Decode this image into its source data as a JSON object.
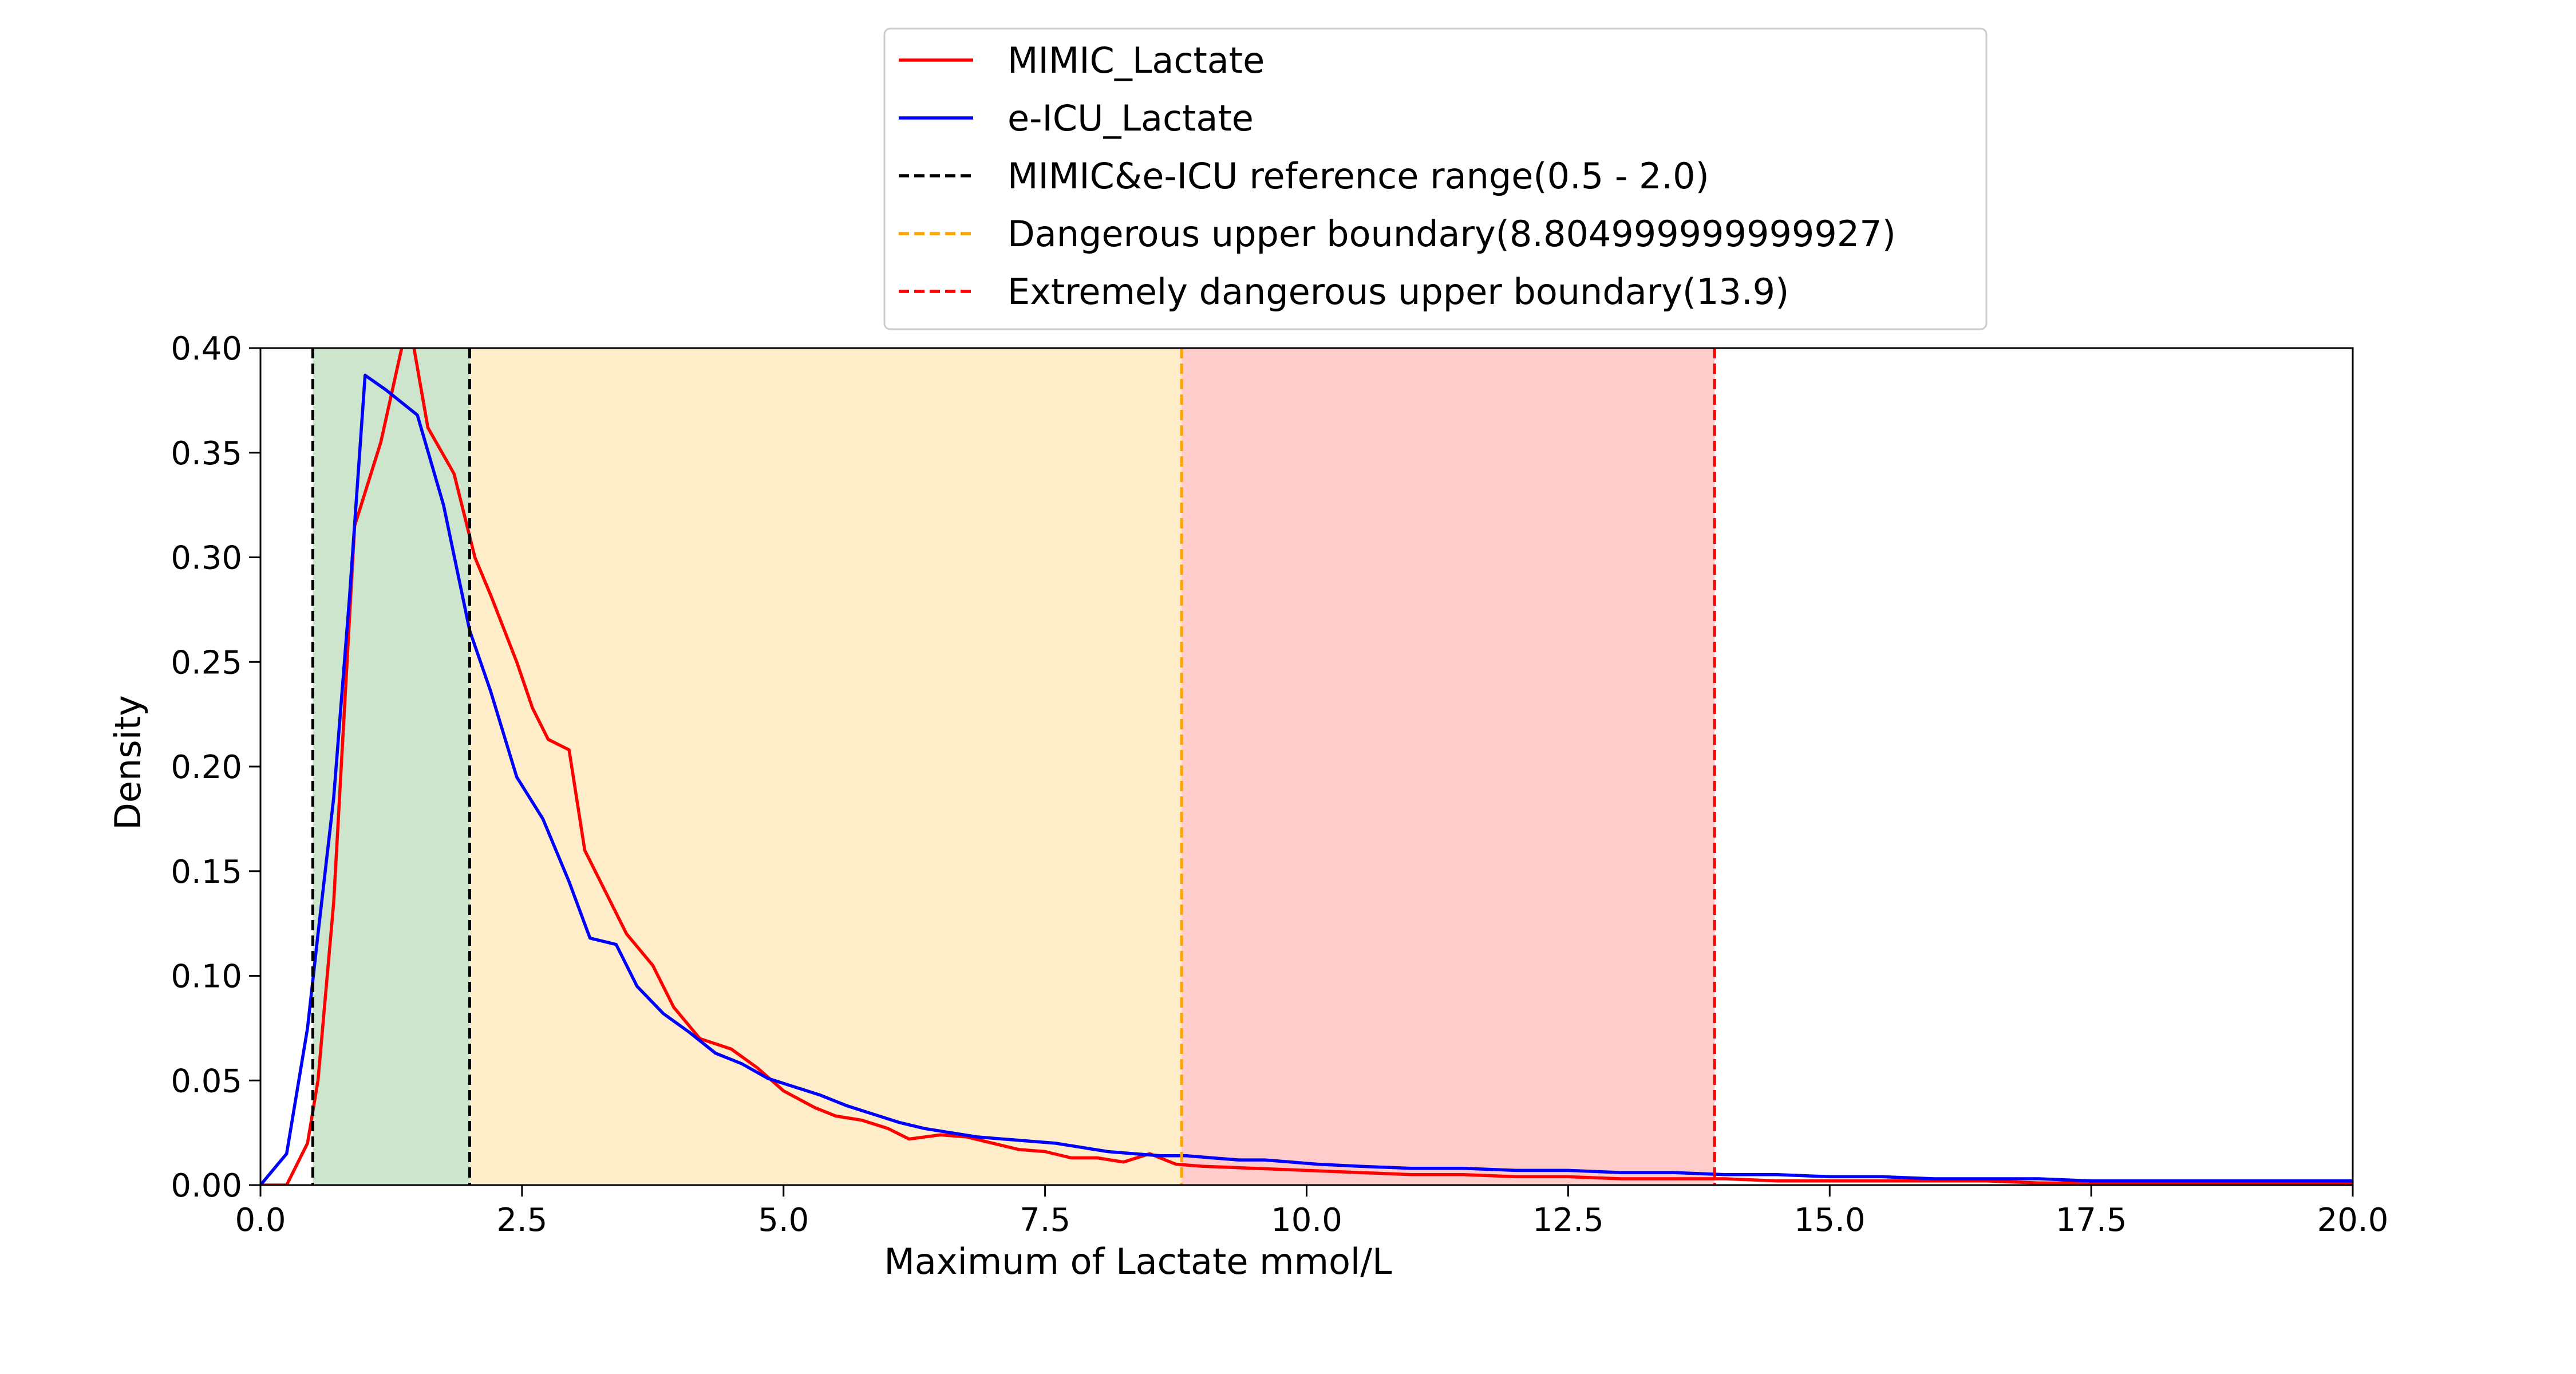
{
  "chart_data": {
    "type": "line",
    "xlabel": "Maximum of Lactate mmol/L",
    "ylabel": "Density",
    "xlim": [
      0,
      20
    ],
    "ylim": [
      0,
      0.4
    ],
    "xticks": [
      "0.0",
      "2.5",
      "5.0",
      "7.5",
      "10.0",
      "12.5",
      "15.0",
      "17.5",
      "20.0"
    ],
    "yticks": [
      "0.00",
      "0.05",
      "0.10",
      "0.15",
      "0.20",
      "0.25",
      "0.30",
      "0.35",
      "0.40"
    ],
    "grid": false,
    "legend_position": "top-center",
    "shaded_regions": [
      {
        "from": 0.5,
        "to": 2.0,
        "color": "#cde5cc"
      },
      {
        "from": 2.0,
        "to": 8.805,
        "color": "#ffecc9"
      },
      {
        "from": 8.805,
        "to": 13.9,
        "color": "#ffcccc"
      }
    ],
    "reference_lines": [
      {
        "x": 0.5,
        "color": "#000000",
        "label": "MIMIC&e-ICU reference range(0.5 - 2.0)"
      },
      {
        "x": 2.0,
        "color": "#000000"
      },
      {
        "x": 8.805,
        "color": "#ffa500",
        "label": "Dangerous upper boundary(8.804999999999927)"
      },
      {
        "x": 13.9,
        "color": "#ff0000",
        "label": "Extremely dangerous upper boundary(13.9)"
      }
    ],
    "series": [
      {
        "name": "MIMIC_Lactate",
        "color": "#ff0000",
        "x": [
          0.0,
          0.25,
          0.45,
          0.55,
          0.7,
          0.9,
          1.15,
          1.35,
          1.45,
          1.6,
          1.85,
          2.05,
          2.2,
          2.45,
          2.6,
          2.75,
          2.95,
          3.1,
          3.3,
          3.5,
          3.75,
          3.95,
          4.2,
          4.5,
          4.75,
          5.0,
          5.3,
          5.5,
          5.75,
          6.0,
          6.2,
          6.5,
          6.75,
          7.0,
          7.25,
          7.5,
          7.75,
          8.0,
          8.25,
          8.5,
          8.75,
          9.0,
          9.5,
          10.0,
          10.5,
          11.0,
          11.5,
          12.0,
          12.5,
          13.0,
          13.5,
          14.0,
          14.5,
          15.0,
          15.5,
          16.0,
          16.5,
          17.0,
          17.5,
          18.0,
          18.5,
          19.0,
          19.5,
          20.0
        ],
        "y": [
          0.0,
          0.0,
          0.02,
          0.05,
          0.135,
          0.315,
          0.355,
          0.4,
          0.405,
          0.362,
          0.34,
          0.3,
          0.282,
          0.25,
          0.228,
          0.213,
          0.208,
          0.16,
          0.14,
          0.12,
          0.105,
          0.085,
          0.07,
          0.065,
          0.056,
          0.045,
          0.037,
          0.033,
          0.031,
          0.027,
          0.022,
          0.024,
          0.023,
          0.02,
          0.017,
          0.016,
          0.013,
          0.013,
          0.011,
          0.015,
          0.01,
          0.009,
          0.008,
          0.007,
          0.006,
          0.005,
          0.005,
          0.004,
          0.004,
          0.003,
          0.003,
          0.003,
          0.002,
          0.002,
          0.002,
          0.002,
          0.002,
          0.001,
          0.001,
          0.001,
          0.001,
          0.001,
          0.001,
          0.001
        ]
      },
      {
        "name": "e-ICU_Lactate",
        "color": "#0000ff",
        "x": [
          0.0,
          0.25,
          0.45,
          0.55,
          0.7,
          0.85,
          1.0,
          1.2,
          1.5,
          1.75,
          2.0,
          2.2,
          2.45,
          2.7,
          2.95,
          3.15,
          3.4,
          3.6,
          3.85,
          4.1,
          4.35,
          4.6,
          4.85,
          5.1,
          5.35,
          5.6,
          5.85,
          6.1,
          6.35,
          6.6,
          6.85,
          7.1,
          7.35,
          7.6,
          7.85,
          8.1,
          8.35,
          8.6,
          8.85,
          9.1,
          9.35,
          9.6,
          9.85,
          10.1,
          10.5,
          11.0,
          11.5,
          12.0,
          12.5,
          13.0,
          13.5,
          14.0,
          14.5,
          15.0,
          15.5,
          16.0,
          16.5,
          17.0,
          17.5,
          18.0,
          18.5,
          19.0,
          19.5,
          20.0
        ],
        "y": [
          0.0,
          0.015,
          0.075,
          0.12,
          0.185,
          0.28,
          0.387,
          0.38,
          0.368,
          0.325,
          0.265,
          0.236,
          0.195,
          0.175,
          0.145,
          0.118,
          0.115,
          0.095,
          0.082,
          0.073,
          0.063,
          0.058,
          0.051,
          0.047,
          0.043,
          0.038,
          0.034,
          0.03,
          0.027,
          0.025,
          0.023,
          0.022,
          0.021,
          0.02,
          0.018,
          0.016,
          0.015,
          0.014,
          0.014,
          0.013,
          0.012,
          0.012,
          0.011,
          0.01,
          0.009,
          0.008,
          0.008,
          0.007,
          0.007,
          0.006,
          0.006,
          0.005,
          0.005,
          0.004,
          0.004,
          0.003,
          0.003,
          0.003,
          0.002,
          0.002,
          0.002,
          0.002,
          0.002,
          0.002
        ]
      }
    ],
    "legend": [
      {
        "label": "MIMIC_Lactate",
        "color": "#ff0000",
        "style": "solid"
      },
      {
        "label": "e-ICU_Lactate",
        "color": "#0000ff",
        "style": "solid"
      },
      {
        "label": "MIMIC&e-ICU reference range(0.5 - 2.0)",
        "color": "#000000",
        "style": "dashed"
      },
      {
        "label": "Dangerous upper boundary(8.804999999999927)",
        "color": "#ffa500",
        "style": "dashed"
      },
      {
        "label": "Extremely dangerous upper boundary(13.9)",
        "color": "#ff0000",
        "style": "dashed"
      }
    ]
  }
}
